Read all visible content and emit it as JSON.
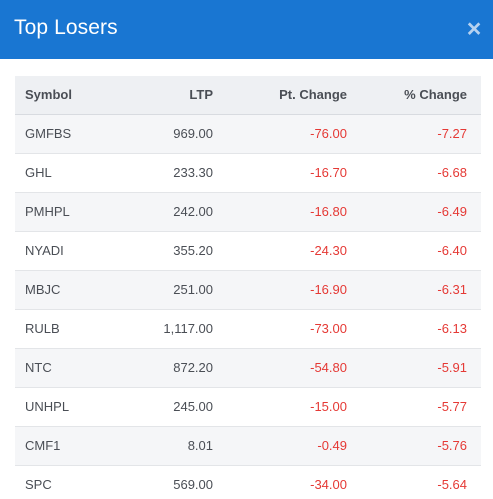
{
  "modal": {
    "title": "Top Losers",
    "close_glyph": "×",
    "close_icon": "close-icon"
  },
  "colors": {
    "header_bg": "#1976d2",
    "negative": "#e53935",
    "row_alt": "#f5f6f8",
    "table_header_bg": "#eef0f3"
  },
  "table": {
    "columns": [
      "Symbol",
      "LTP",
      "Pt. Change",
      "% Change"
    ],
    "rows": [
      {
        "symbol": "GMFBS",
        "ltp": "969.00",
        "pt_change": "-76.00",
        "pct_change": "-7.27"
      },
      {
        "symbol": "GHL",
        "ltp": "233.30",
        "pt_change": "-16.70",
        "pct_change": "-6.68"
      },
      {
        "symbol": "PMHPL",
        "ltp": "242.00",
        "pt_change": "-16.80",
        "pct_change": "-6.49"
      },
      {
        "symbol": "NYADI",
        "ltp": "355.20",
        "pt_change": "-24.30",
        "pct_change": "-6.40"
      },
      {
        "symbol": "MBJC",
        "ltp": "251.00",
        "pt_change": "-16.90",
        "pct_change": "-6.31"
      },
      {
        "symbol": "RULB",
        "ltp": "1,117.00",
        "pt_change": "-73.00",
        "pct_change": "-6.13"
      },
      {
        "symbol": "NTC",
        "ltp": "872.20",
        "pt_change": "-54.80",
        "pct_change": "-5.91"
      },
      {
        "symbol": "UNHPL",
        "ltp": "245.00",
        "pt_change": "-15.00",
        "pct_change": "-5.77"
      },
      {
        "symbol": "CMF1",
        "ltp": "8.01",
        "pt_change": "-0.49",
        "pct_change": "-5.76"
      },
      {
        "symbol": "SPC",
        "ltp": "569.00",
        "pt_change": "-34.00",
        "pct_change": "-5.64"
      }
    ]
  }
}
